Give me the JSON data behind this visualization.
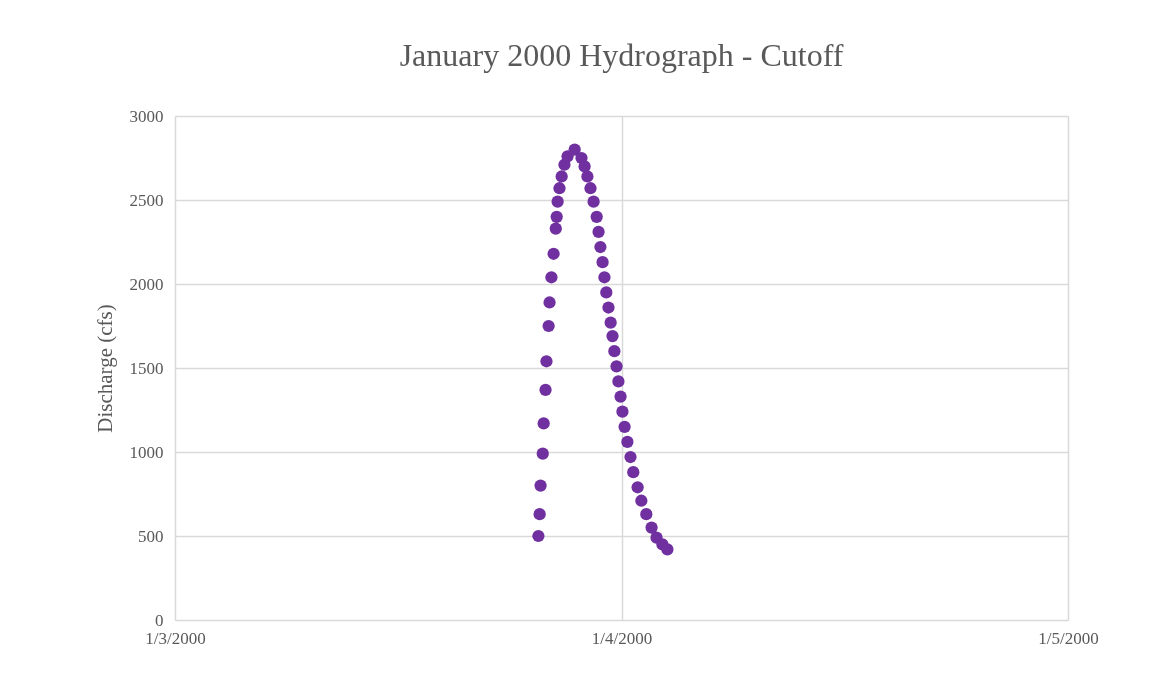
{
  "chart_data": {
    "type": "scatter",
    "title": "January 2000 Hydrograph - Cutoff",
    "ylabel": "Discharge (cfs)",
    "x": [
      "2000-01-03T19:32",
      "2000-01-03T19:36",
      "2000-01-03T19:39",
      "2000-01-03T19:46",
      "2000-01-03T19:49",
      "2000-01-03T19:55",
      "2000-01-03T19:58",
      "2000-01-03T20:05",
      "2000-01-03T20:08",
      "2000-01-03T20:14",
      "2000-01-03T20:21",
      "2000-01-03T20:28",
      "2000-01-03T20:31",
      "2000-01-03T20:34",
      "2000-01-03T20:40",
      "2000-01-03T20:47",
      "2000-01-03T20:56",
      "2000-01-03T21:06",
      "2000-01-03T21:29",
      "2000-01-03T21:51",
      "2000-01-03T22:01",
      "2000-01-03T22:10",
      "2000-01-03T22:20",
      "2000-01-03T22:30",
      "2000-01-03T22:40",
      "2000-01-03T22:46",
      "2000-01-03T22:52",
      "2000-01-03T22:59",
      "2000-01-03T23:05",
      "2000-01-03T23:11",
      "2000-01-03T23:18",
      "2000-01-03T23:25",
      "2000-01-03T23:31",
      "2000-01-03T23:37",
      "2000-01-03T23:44",
      "2000-01-03T23:50",
      "2000-01-03T23:57",
      "2000-01-04T00:03",
      "2000-01-04T00:10",
      "2000-01-04T00:19",
      "2000-01-04T00:29",
      "2000-01-04T00:38",
      "2000-01-04T00:52",
      "2000-01-04T01:04",
      "2000-01-04T01:20",
      "2000-01-04T01:37",
      "2000-01-04T01:53",
      "2000-01-04T02:12",
      "2000-01-04T02:28"
    ],
    "series": [
      {
        "color": "#7030a0",
        "values": [
          500,
          630,
          800,
          990,
          1170,
          1370,
          1540,
          1750,
          1890,
          2040,
          2180,
          2330,
          2400,
          2490,
          2570,
          2640,
          2710,
          2760,
          2800,
          2750,
          2700,
          2640,
          2570,
          2490,
          2400,
          2310,
          2220,
          2130,
          2040,
          1950,
          1860,
          1770,
          1690,
          1600,
          1510,
          1420,
          1330,
          1240,
          1150,
          1060,
          970,
          880,
          790,
          710,
          630,
          550,
          490,
          450,
          420
        ]
      }
    ],
    "xlim": [
      "2000-01-03",
      "2000-01-05"
    ],
    "xticks": [
      {
        "value": "2000-01-03",
        "label": "1/3/2000"
      },
      {
        "value": "2000-01-04",
        "label": "1/4/2000"
      },
      {
        "value": "2000-01-05",
        "label": "1/5/2000"
      }
    ],
    "ylim": [
      0,
      3000
    ],
    "yticks": [
      0,
      500,
      1000,
      1500,
      2000,
      2500,
      3000
    ],
    "grid": true,
    "marker": "circle"
  }
}
